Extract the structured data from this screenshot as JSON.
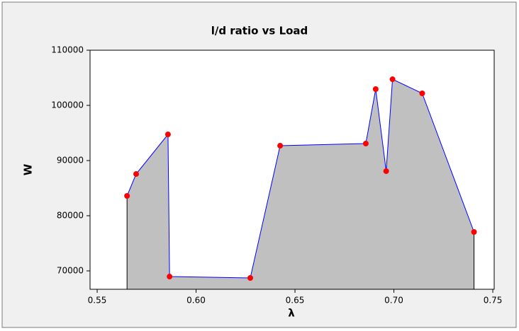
{
  "chart_data": {
    "type": "area",
    "title": "l/d ratio vs Load",
    "x_label": "λ",
    "y_label": "W",
    "x": [
      0.5651,
      0.5697,
      0.5858,
      0.5866,
      0.6274,
      0.6425,
      0.6858,
      0.6908,
      0.6961,
      0.6993,
      0.7143,
      0.7405
    ],
    "values": [
      83590,
      87560,
      94740,
      68970,
      68720,
      92690,
      93080,
      102950,
      88080,
      104740,
      102180,
      77050
    ],
    "fill_color": "#c0c0c0",
    "line_color": "#0000ff",
    "marker_color": "#ff0000",
    "xlim": [
      0.5464,
      0.7507
    ],
    "ylim": [
      66667,
      110000
    ],
    "xticks": [
      0.55,
      {
        "value": 0.6,
        "label": "0.60"
      },
      0.65,
      {
        "value": 0.7,
        "label": "0.70"
      },
      0.75
    ],
    "yticks": [
      70000,
      80000,
      90000,
      100000,
      110000
    ]
  }
}
